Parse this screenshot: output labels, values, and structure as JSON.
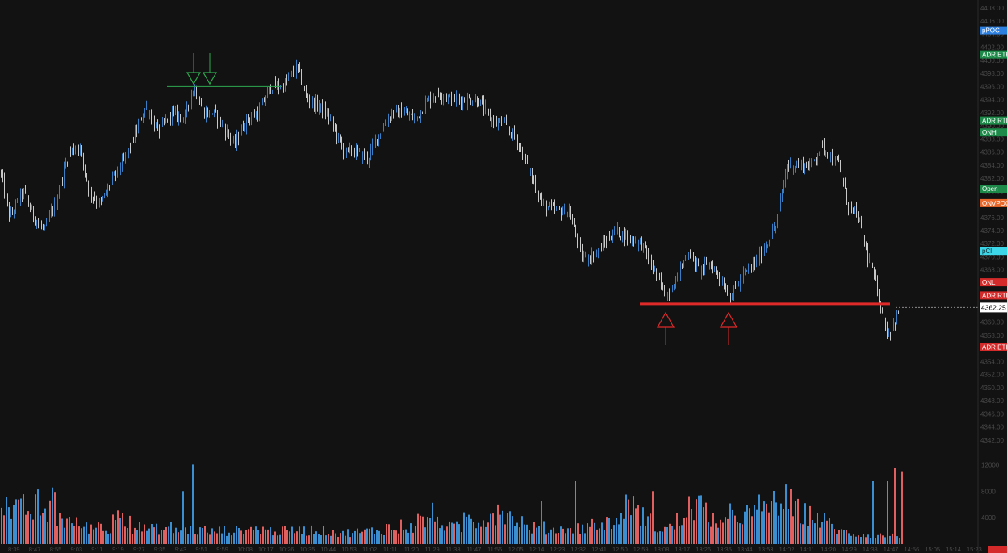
{
  "chart_data": {
    "type": "candlestick",
    "price_axis": {
      "min": 4340,
      "max": 4408,
      "tick_step": 2,
      "ticks": [
        "4408.00",
        "4406.00",
        "4404.00",
        "4402.00",
        "4400.00",
        "4398.00",
        "4396.00",
        "4394.00",
        "4392.00",
        "4390.00",
        "4388.00",
        "4386.00",
        "4384.00",
        "4382.00",
        "4380.00",
        "4378.00",
        "4376.00",
        "4374.00",
        "4372.00",
        "4370.00",
        "4368.00",
        "4366.00",
        "4364.00",
        "4362.00",
        "4360.00",
        "4358.00",
        "4356.00",
        "4354.00",
        "4352.00",
        "4350.00",
        "4348.00",
        "4346.00",
        "4344.00",
        "4342.00"
      ]
    },
    "volume_axis": {
      "min": 0,
      "max": 14000,
      "ticks": [
        "12000",
        "8000",
        "4000"
      ]
    },
    "time_labels": [
      "8:39",
      "8:47",
      "8:55",
      "9:03",
      "9:11",
      "9:19",
      "9:27",
      "9:35",
      "9:43",
      "9:51",
      "9:59",
      "10:08",
      "10:17",
      "10:26",
      "10:35",
      "10:44",
      "10:53",
      "11:02",
      "11:11",
      "11:20",
      "11:29",
      "11:38",
      "11:47",
      "11:56",
      "12:05",
      "12:14",
      "12:23",
      "12:32",
      "12:41",
      "12:50",
      "12:59",
      "13:08",
      "13:17",
      "13:26",
      "13:35",
      "13:44",
      "13:53",
      "14:02",
      "14:11",
      "14:20",
      "14:29",
      "14:38",
      "14:47",
      "14:56",
      "15:05",
      "15:14",
      "15:23"
    ],
    "last_price": "4362.25",
    "last_value": 4362.25,
    "price_keypoints": [
      [
        0,
        4383
      ],
      [
        12,
        4376
      ],
      [
        28,
        4380
      ],
      [
        42,
        4376
      ],
      [
        55,
        4374
      ],
      [
        70,
        4379
      ],
      [
        85,
        4386
      ],
      [
        98,
        4387
      ],
      [
        110,
        4380
      ],
      [
        124,
        4378
      ],
      [
        140,
        4382
      ],
      [
        155,
        4385
      ],
      [
        168,
        4389
      ],
      [
        180,
        4393
      ],
      [
        196,
        4389
      ],
      [
        212,
        4392
      ],
      [
        228,
        4391
      ],
      [
        240,
        4396
      ],
      [
        252,
        4392
      ],
      [
        264,
        4392
      ],
      [
        276,
        4390
      ],
      [
        290,
        4387
      ],
      [
        305,
        4391
      ],
      [
        320,
        4392
      ],
      [
        335,
        4396
      ],
      [
        350,
        4396
      ],
      [
        368,
        4399
      ],
      [
        380,
        4394
      ],
      [
        395,
        4393
      ],
      [
        410,
        4391
      ],
      [
        425,
        4386
      ],
      [
        440,
        4386
      ],
      [
        455,
        4385
      ],
      [
        470,
        4389
      ],
      [
        485,
        4392
      ],
      [
        500,
        4392
      ],
      [
        515,
        4391
      ],
      [
        530,
        4394
      ],
      [
        545,
        4395
      ],
      [
        560,
        4394
      ],
      [
        575,
        4394
      ],
      [
        592,
        4394
      ],
      [
        608,
        4391
      ],
      [
        625,
        4390
      ],
      [
        640,
        4388
      ],
      [
        656,
        4383
      ],
      [
        672,
        4378
      ],
      [
        688,
        4377
      ],
      [
        705,
        4377
      ],
      [
        720,
        4370
      ],
      [
        735,
        4370
      ],
      [
        748,
        4372
      ],
      [
        762,
        4374
      ],
      [
        778,
        4373
      ],
      [
        795,
        4372
      ],
      [
        810,
        4368
      ],
      [
        825,
        4364
      ],
      [
        840,
        4367
      ],
      [
        852,
        4371
      ],
      [
        866,
        4368
      ],
      [
        880,
        4369
      ],
      [
        895,
        4366
      ],
      [
        906,
        4364
      ],
      [
        920,
        4367
      ],
      [
        935,
        4369
      ],
      [
        950,
        4372
      ],
      [
        962,
        4375
      ],
      [
        975,
        4384
      ],
      [
        990,
        4384
      ],
      [
        1005,
        4384
      ],
      [
        1018,
        4387
      ],
      [
        1030,
        4385
      ],
      [
        1040,
        4384
      ],
      [
        1050,
        4378
      ],
      [
        1063,
        4376
      ],
      [
        1075,
        4370
      ],
      [
        1085,
        4366
      ],
      [
        1092,
        4362
      ],
      [
        1100,
        4358
      ],
      [
        1108,
        4360
      ],
      [
        1115,
        4362
      ]
    ],
    "volume_profile": [
      6000,
      5000,
      5000,
      5500,
      4500,
      6000,
      4000,
      7500,
      4000,
      3500,
      3000,
      3000,
      2500,
      2500,
      3000,
      2000,
      3500,
      6000,
      4000,
      2500,
      2500,
      2200,
      2300,
      2000,
      2500,
      2200,
      2000,
      2200,
      2000,
      2200,
      1800,
      2000,
      2000,
      2000,
      2000,
      2500,
      2200,
      2300,
      2200,
      2000,
      1900,
      2000,
      2000,
      2500,
      2000,
      2200,
      2000,
      2000,
      1900,
      1500,
      1800,
      1800,
      1800,
      2000,
      2000,
      2200,
      2500,
      2000,
      2800,
      2500,
      3500,
      3500,
      4500,
      3500,
      3000,
      2500,
      2500,
      4000,
      4000,
      3500,
      4000,
      4500,
      5500,
      5000,
      4000,
      3500,
      2500,
      2500,
      2500,
      2200,
      2300,
      2200,
      2500,
      2500,
      2500,
      3000,
      2500,
      3000,
      3500,
      3000,
      5500,
      6500,
      4500,
      4500,
      3500,
      2500,
      2500,
      2500,
      3500,
      4500,
      5500,
      6000,
      4500,
      4000,
      3000,
      3000,
      4500,
      4500,
      4500,
      4500,
      5500,
      6000,
      6000,
      6500,
      6000,
      5000,
      4500,
      4500,
      4000,
      3500,
      3000,
      2200,
      1800,
      1600,
      1500,
      1500,
      1400,
      1300,
      1300,
      1200,
      1200
    ],
    "volume_spikes": [
      [
        238,
        12000
      ],
      [
        712,
        9500
      ],
      [
        1080,
        9500
      ],
      [
        1108,
        11500
      ],
      [
        1117,
        11000
      ],
      [
        972,
        9000
      ],
      [
        1098,
        9500
      ],
      [
        808,
        8000
      ],
      [
        670,
        6500
      ],
      [
        225,
        8000
      ]
    ],
    "levels": [
      {
        "label": "pPOC",
        "price": 4404.6,
        "color": "#2d7fe0",
        "text_color": "#ffffff"
      },
      {
        "label": "ADR ETH",
        "price": 4400.9,
        "color": "#1e8a4a",
        "text_color": "#ffffff"
      },
      {
        "label": "ADR RTH",
        "price": 4390.8,
        "color": "#1e8a4a",
        "text_color": "#ffffff"
      },
      {
        "label": "ONH",
        "price": 4389.0,
        "color": "#1e8a4a",
        "text_color": "#ffffff"
      },
      {
        "label": "Open",
        "price": 4380.4,
        "color": "#1e8a4a",
        "text_color": "#ffffff"
      },
      {
        "label": "ONVPOC",
        "price": 4378.2,
        "color": "#e8672b",
        "text_color": "#ffffff"
      },
      {
        "label": "pCl",
        "price": 4370.9,
        "color": "#3dd6e8",
        "text_color": "#0b2a30"
      },
      {
        "label": "ONL",
        "price": 4366.1,
        "color": "#d42a2a",
        "text_color": "#ffffff"
      },
      {
        "label": "ADR RTH",
        "price": 4364.1,
        "color": "#d42a2a",
        "text_color": "#ffffff"
      },
      {
        "label": "ADR ETH",
        "price": 4356.2,
        "color": "#d42a2a",
        "text_color": "#ffffff"
      }
    ],
    "annotations": {
      "resistance_price": 4396.0,
      "support_price": 4362.8,
      "colors": {
        "up": "#3a7dc4",
        "down": "#c8c8c8",
        "vol_up": "#3b8ed0",
        "vol_down": "#e06060",
        "green": "#2fa84f",
        "red": "#e02a2a"
      }
    }
  }
}
